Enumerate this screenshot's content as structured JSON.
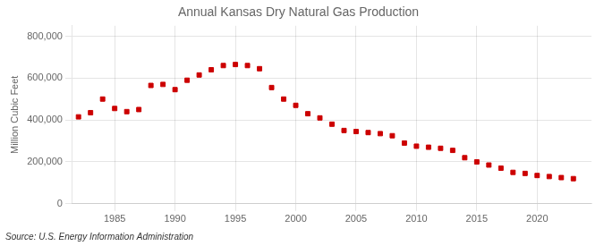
{
  "chart_data": {
    "type": "scatter",
    "title": "Annual Kansas Dry Natural Gas Production",
    "ylabel": "Million Cubic Feet",
    "annotation": "Source: U.S. Energy Information Administration",
    "x": [
      1982,
      1983,
      1984,
      1985,
      1986,
      1987,
      1988,
      1989,
      1990,
      1991,
      1992,
      1993,
      1994,
      1995,
      1996,
      1997,
      1998,
      1999,
      2000,
      2001,
      2002,
      2003,
      2004,
      2005,
      2006,
      2007,
      2008,
      2009,
      2010,
      2011,
      2012,
      2013,
      2014,
      2015,
      2016,
      2017,
      2018,
      2019,
      2020,
      2021,
      2022,
      2023
    ],
    "values": [
      415000,
      435000,
      500000,
      455000,
      440000,
      450000,
      565000,
      570000,
      545000,
      590000,
      615000,
      640000,
      660000,
      665000,
      660000,
      645000,
      555000,
      500000,
      470000,
      430000,
      410000,
      380000,
      350000,
      345000,
      340000,
      335000,
      325000,
      290000,
      275000,
      270000,
      265000,
      255000,
      220000,
      200000,
      185000,
      170000,
      150000,
      145000,
      135000,
      130000,
      125000,
      120000
    ],
    "color": "#cc0000",
    "marker": "square",
    "xlim": [
      1981.5,
      2024.5
    ],
    "xticks": [
      1985,
      1990,
      1995,
      2000,
      2005,
      2010,
      2015,
      2020
    ],
    "ylim": [
      0,
      850000
    ],
    "yticks": [
      0,
      {
        "value": 200000,
        "label": "200,000"
      },
      {
        "value": 400000,
        "label": "400,000"
      },
      {
        "value": 600000,
        "label": "600,000"
      },
      {
        "value": 800000,
        "label": "800,000"
      }
    ],
    "grid": true
  }
}
